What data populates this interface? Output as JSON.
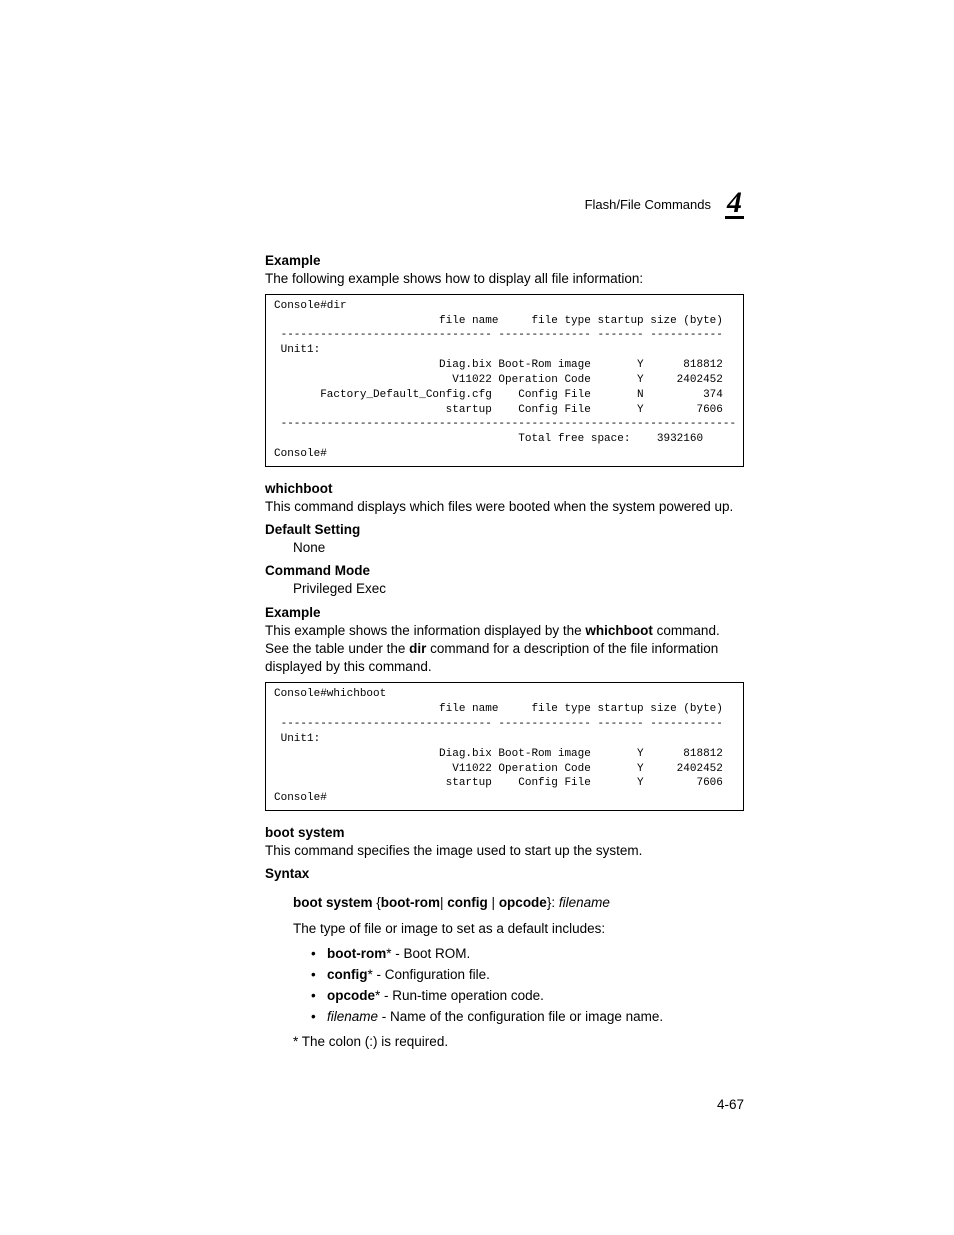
{
  "header": {
    "section_label": "Flash/File Commands",
    "chapter_number": "4"
  },
  "example1": {
    "title": "Example",
    "intro": "The following example shows how to display all file information:",
    "code": "Console#dir\n                         file name     file type startup size (byte)\n -------------------------------- -------------- ------- -----------\n Unit1:\n                         Diag.bix Boot-Rom image       Y      818812\n                           V11022 Operation Code       Y     2402452\n       Factory_Default_Config.cfg    Config File       N         374\n                          startup    Config File       Y        7606\n ---------------------------------------------------------------------\n                                     Total free space:    3932160\nConsole#"
  },
  "whichboot": {
    "title": "whichboot",
    "desc": "This command displays which files were booted when the system powered up.",
    "default_setting_label": "Default Setting",
    "default_setting_value": "None",
    "command_mode_label": "Command Mode",
    "command_mode_value": "Privileged Exec",
    "example_label": "Example",
    "example_text_pre": "This example shows the information displayed by the ",
    "example_text_bold1": "whichboot",
    "example_text_mid": " command. See the table under the ",
    "example_text_bold2": "dir",
    "example_text_post": " command for a description of the file information displayed by this command.",
    "code": "Console#whichboot\n                         file name     file type startup size (byte)\n -------------------------------- -------------- ------- -----------\n Unit1:\n                         Diag.bix Boot-Rom image       Y      818812\n                           V11022 Operation Code       Y     2402452\n                          startup    Config File       Y        7606\nConsole#"
  },
  "bootsystem": {
    "title": "boot system",
    "desc": "This command specifies the image used to start up the system.",
    "syntax_label": "Syntax",
    "syntax_bold1": "boot system",
    "syntax_brace_open": " {",
    "syntax_b2": "boot-rom",
    "syntax_sep1": "| ",
    "syntax_b3": "config",
    "syntax_sep2": " | ",
    "syntax_b4": "opcode",
    "syntax_brace_close": "}: ",
    "syntax_italic": "filename",
    "type_intro": "The type of file or image to set as a default includes:",
    "bullets": [
      {
        "bold": "boot-rom",
        "star": "*",
        "rest": " - Boot ROM."
      },
      {
        "bold": "config",
        "star": "*",
        "rest": " - Configuration file."
      },
      {
        "bold": "opcode",
        "star": "*",
        "rest": " - Run-time operation code."
      },
      {
        "italic": "filename",
        "rest": " - Name of the configuration file or image name."
      }
    ],
    "note": "* The colon (:) is required."
  },
  "footer": {
    "page_num": "4-67"
  }
}
